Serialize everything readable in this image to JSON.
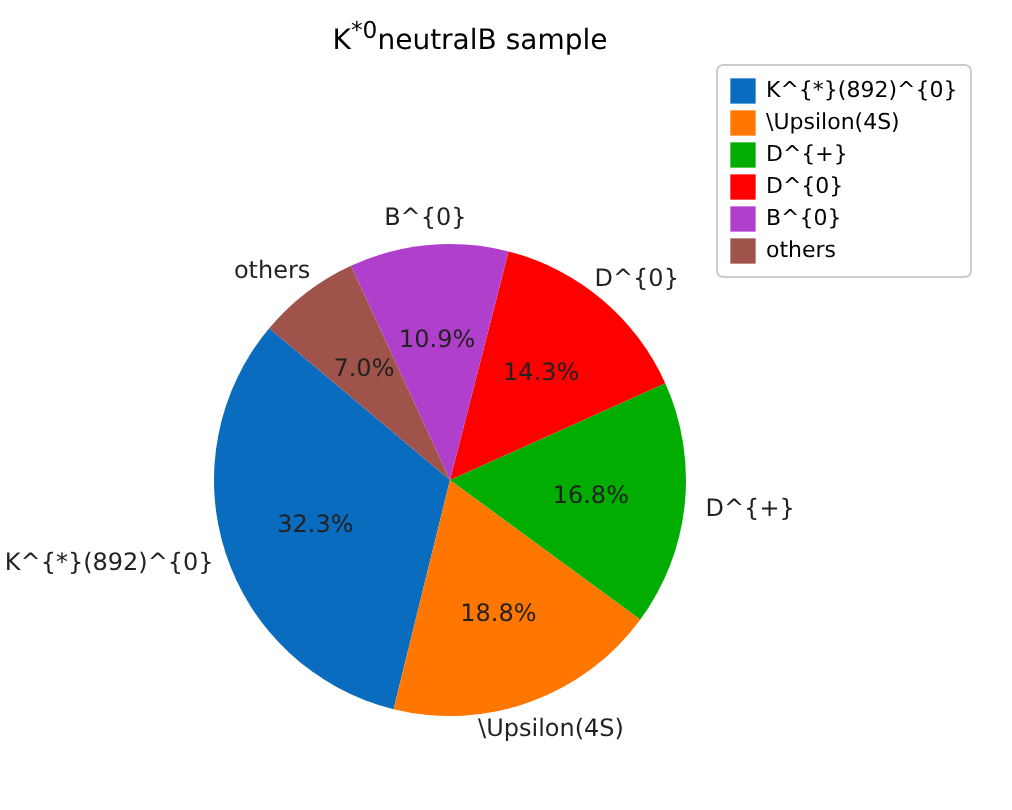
{
  "chart_data": {
    "type": "pie",
    "title": "K$^{*0}$neutralB sample",
    "categories": [
      "K^{*}(892)^{0}",
      "\\Upsilon(4S)",
      "D^{+}",
      "D^{0}",
      "B^{0}",
      "others"
    ],
    "values": [
      32.3,
      18.8,
      16.8,
      14.3,
      10.9,
      7.0
    ],
    "value_labels": [
      "32.3%",
      "18.8%",
      "16.8%",
      "14.3%",
      "10.9%",
      "7.0%"
    ],
    "colors": [
      "#0a6cbf",
      "#ff7600",
      "#00ad00",
      "#ff0000",
      "#b03fcc",
      "#a0534b"
    ],
    "legend": "top right"
  }
}
